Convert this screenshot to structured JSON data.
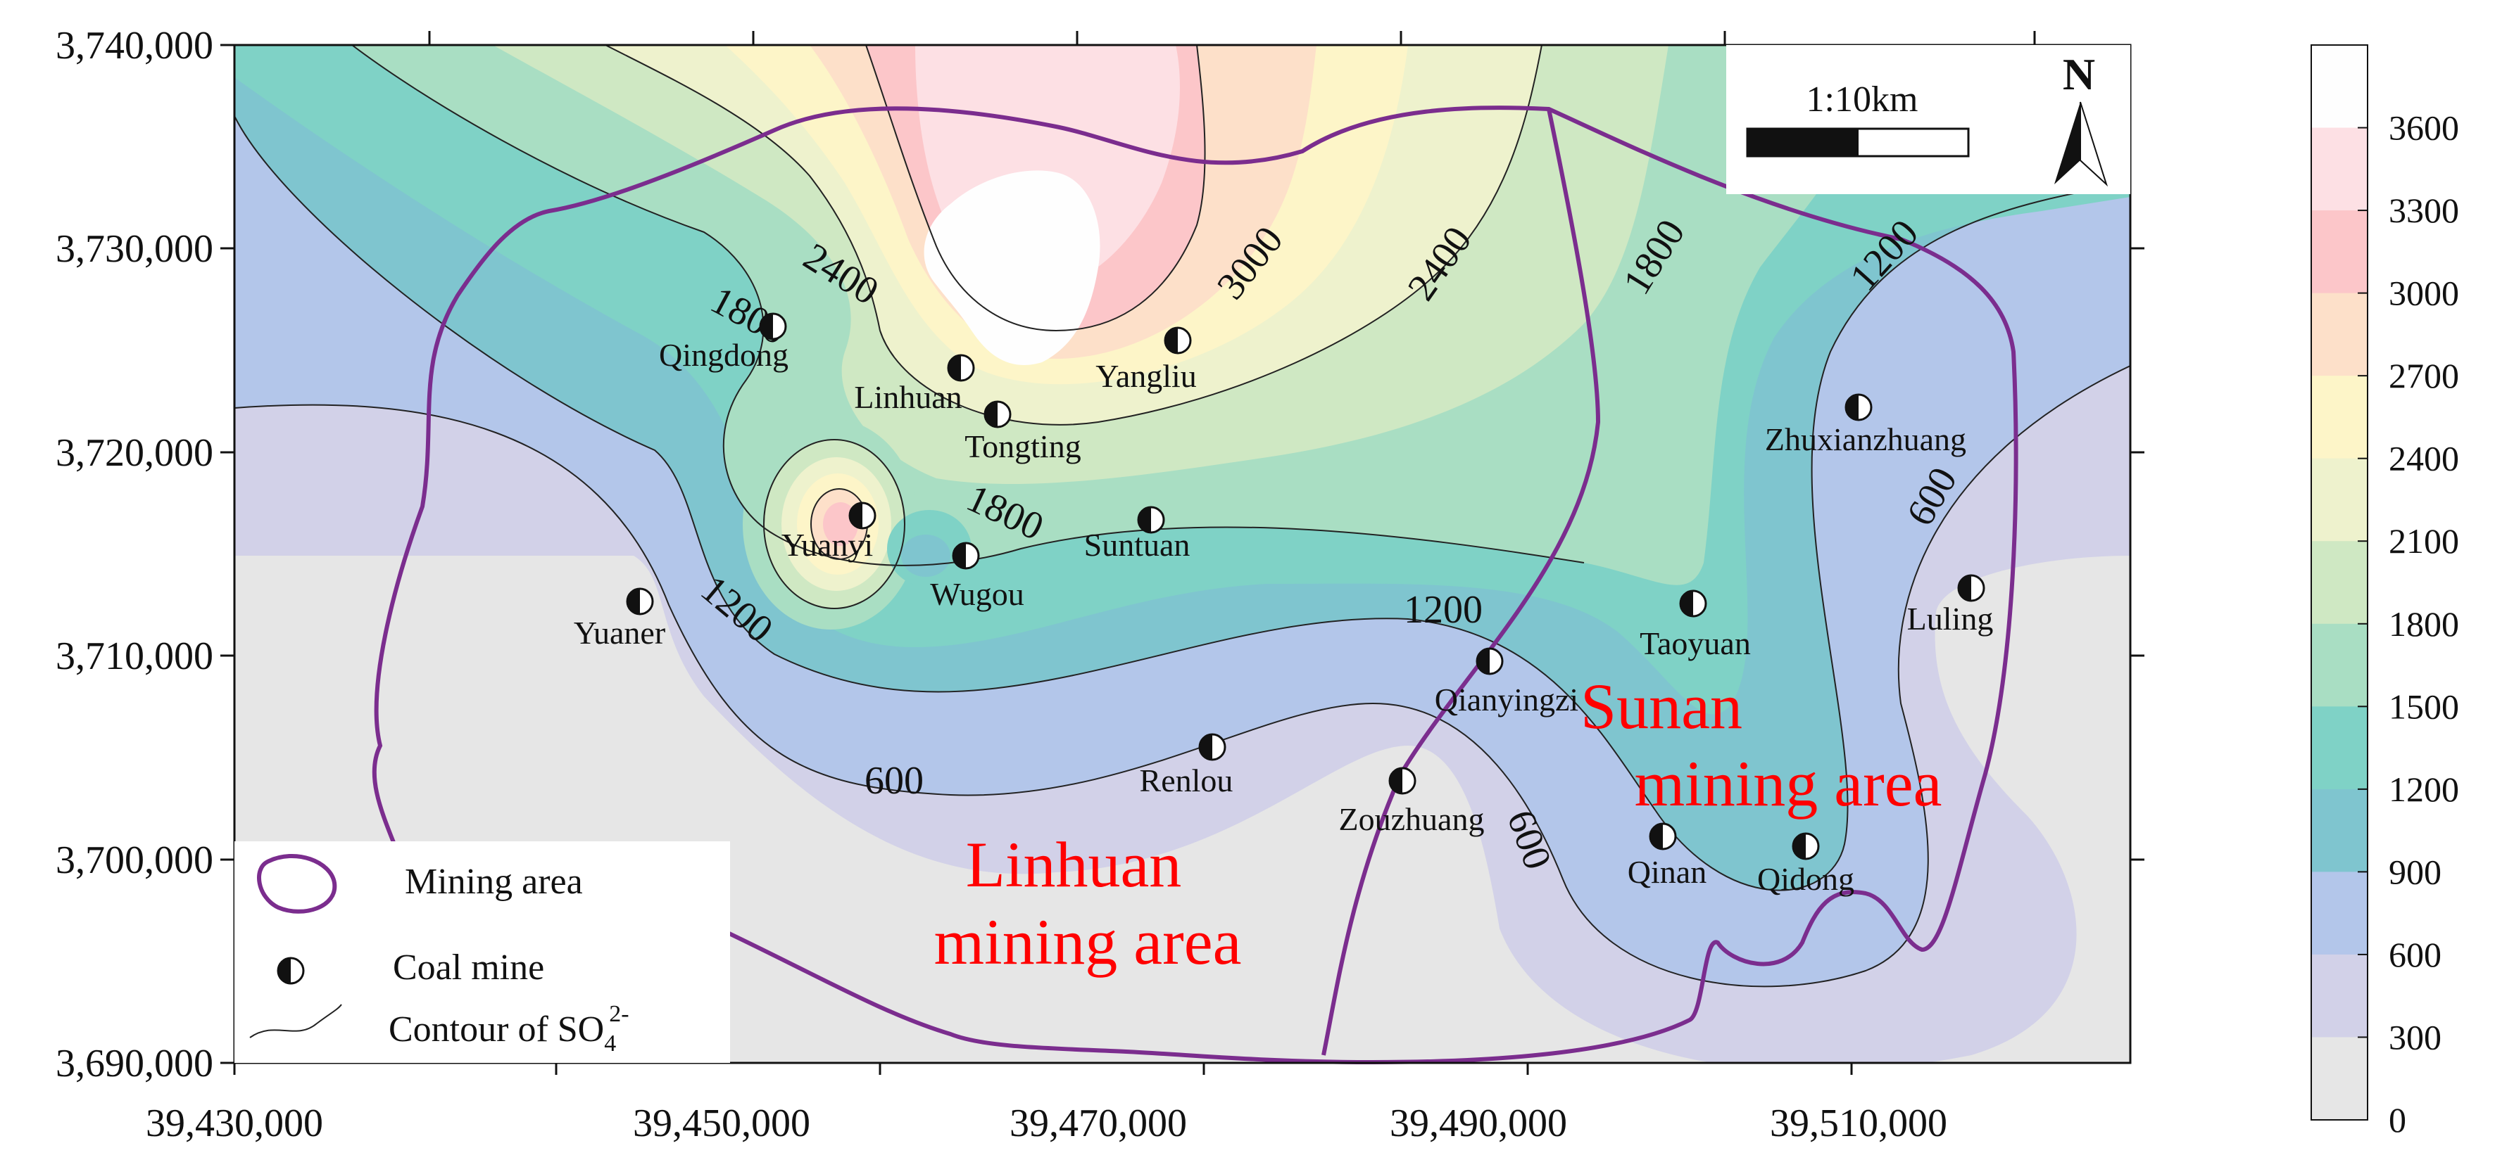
{
  "axes": {
    "x_ticks": [
      "39,430,000",
      "39,450,000",
      "39,470,000",
      "39,490,000",
      "39,510,000"
    ],
    "y_ticks": [
      "3,740,000",
      "3,730,000",
      "3,720,000",
      "3,710,000",
      "3,700,000",
      "3,690,000"
    ]
  },
  "colorbar": {
    "labels": [
      "3600",
      "3300",
      "3000",
      "2700",
      "2400",
      "2100",
      "1800",
      "1500",
      "1200",
      "900",
      "600",
      "300",
      "0"
    ],
    "colors": [
      "#fefefe",
      "#fde0e4",
      "#fcc6c9",
      "#fde0c9",
      "#fdf5c8",
      "#eef2cd",
      "#cfe8c3",
      "#a9dec3",
      "#7fd2c6",
      "#7fc5cf",
      "#b3c6ea",
      "#d2d1e8",
      "#e6e6e6"
    ]
  },
  "scale_bar": {
    "label": "1:10km"
  },
  "north_arrow": {
    "label": "N"
  },
  "mines": [
    {
      "name": "Qingdong"
    },
    {
      "name": "Linhuan"
    },
    {
      "name": "Tongting"
    },
    {
      "name": "Yangliu"
    },
    {
      "name": "Zhuxianzhuang"
    },
    {
      "name": "Yuanyi"
    },
    {
      "name": "Wugou"
    },
    {
      "name": "Suntuan"
    },
    {
      "name": "Yuaner"
    },
    {
      "name": "Luling"
    },
    {
      "name": "Taoyuan"
    },
    {
      "name": "Qianyingzi"
    },
    {
      "name": "Renlou"
    },
    {
      "name": "Zouzhuang"
    },
    {
      "name": "Qinan"
    },
    {
      "name": "Qidong"
    }
  ],
  "contour_labels": [
    "1800",
    "2400",
    "3000",
    "2400",
    "1800",
    "1200",
    "1800",
    "1200",
    "1200",
    "600",
    "600",
    "600"
  ],
  "areas": {
    "sunan_line1": "Sunan",
    "sunan_line2": "mining area",
    "linhuan_line1": "Linhuan",
    "linhuan_line2": "mining area"
  },
  "legend": {
    "mining_area": "Mining area",
    "coal_mine": "Coal mine",
    "contour_prefix": "Contour of  SO",
    "contour_sub": "4",
    "contour_sup": "2-"
  }
}
